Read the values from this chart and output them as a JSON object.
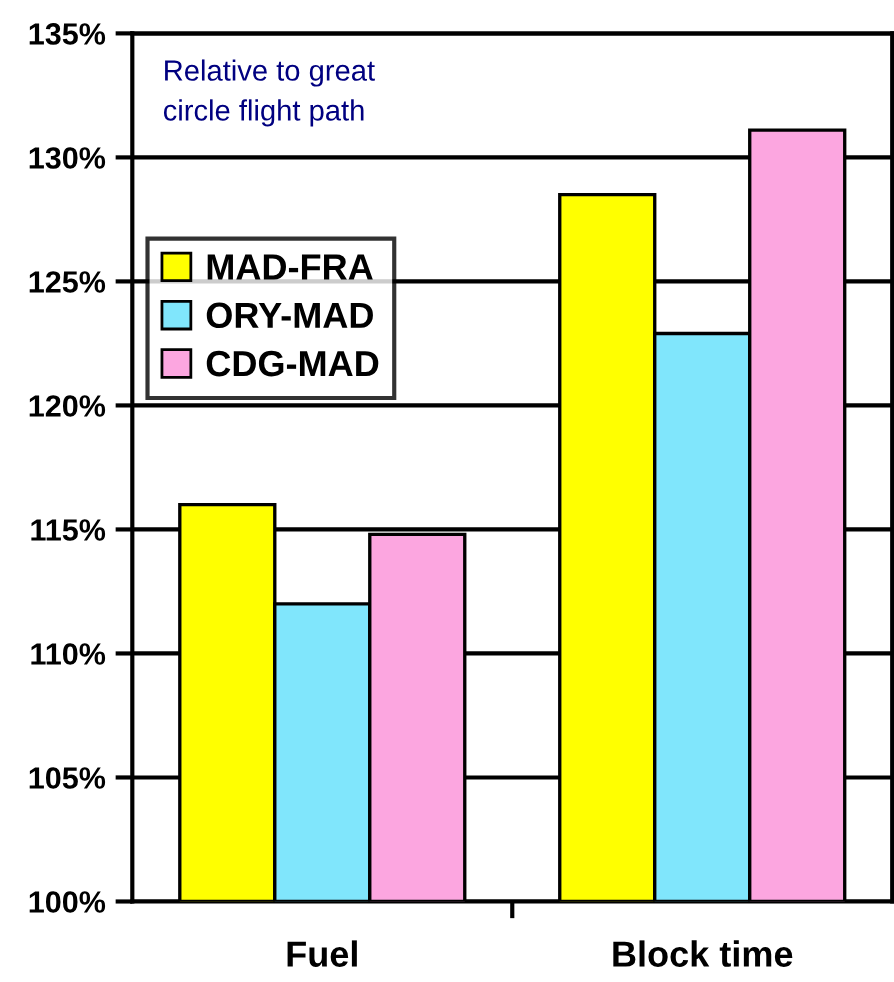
{
  "chart_data": {
    "type": "bar",
    "categories": [
      "Fuel",
      "Block time"
    ],
    "series": [
      {
        "name": "MAD-FRA",
        "color": "#ffff00",
        "values": [
          116.0,
          128.5
        ]
      },
      {
        "name": "ORY-MAD",
        "color": "#80e6fc",
        "values": [
          112.0,
          122.9
        ]
      },
      {
        "name": "CDG-MAD",
        "color": "#fca6e0",
        "values": [
          114.8,
          131.1
        ]
      }
    ],
    "ylim": [
      100,
      135
    ],
    "yticks": [
      {
        "value": 100,
        "label": "100%"
      },
      {
        "value": 105,
        "label": "105%"
      },
      {
        "value": 110,
        "label": "110%"
      },
      {
        "value": 115,
        "label": "115%"
      },
      {
        "value": 120,
        "label": "120%"
      },
      {
        "value": 125,
        "label": "125%"
      },
      {
        "value": 130,
        "label": "130%"
      },
      {
        "value": 135,
        "label": "135%"
      }
    ],
    "grid": "y",
    "legend": "top left",
    "annotations": [
      "Relative to great\ncircle flight path"
    ]
  }
}
